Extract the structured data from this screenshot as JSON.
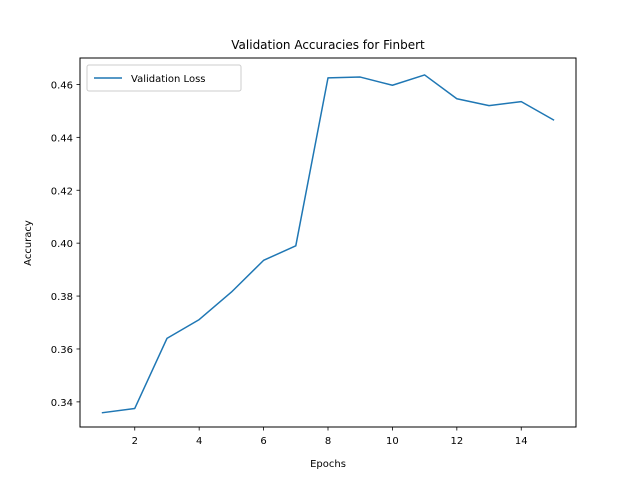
{
  "chart_data": {
    "type": "line",
    "title": "Validation Accuracies for Finbert",
    "xlabel": "Epochs",
    "ylabel": "Accuracy",
    "xlim": [
      0.3,
      15.7
    ],
    "ylim": [
      0.3305,
      0.47
    ],
    "x_ticks": [
      2,
      4,
      6,
      8,
      10,
      12,
      14
    ],
    "y_ticks": [
      0.34,
      0.36,
      0.38,
      0.4,
      0.42,
      0.44,
      0.46
    ],
    "x_tick_labels": [
      "2",
      "4",
      "6",
      "8",
      "10",
      "12",
      "14"
    ],
    "y_tick_labels": [
      "0.34",
      "0.36",
      "0.38",
      "0.40",
      "0.42",
      "0.44",
      "0.46"
    ],
    "grid": false,
    "legend_position": "top-left",
    "series": [
      {
        "name": "Validation Loss",
        "color": "#1f77b4",
        "x": [
          1,
          2,
          3,
          4,
          5,
          6,
          7,
          8,
          9,
          10,
          11,
          12,
          13,
          14,
          15
        ],
        "y": [
          0.3359,
          0.3375,
          0.364,
          0.3711,
          0.3815,
          0.3935,
          0.399,
          0.4625,
          0.4628,
          0.4597,
          0.4636,
          0.4546,
          0.452,
          0.4535,
          0.4466
        ]
      }
    ]
  }
}
